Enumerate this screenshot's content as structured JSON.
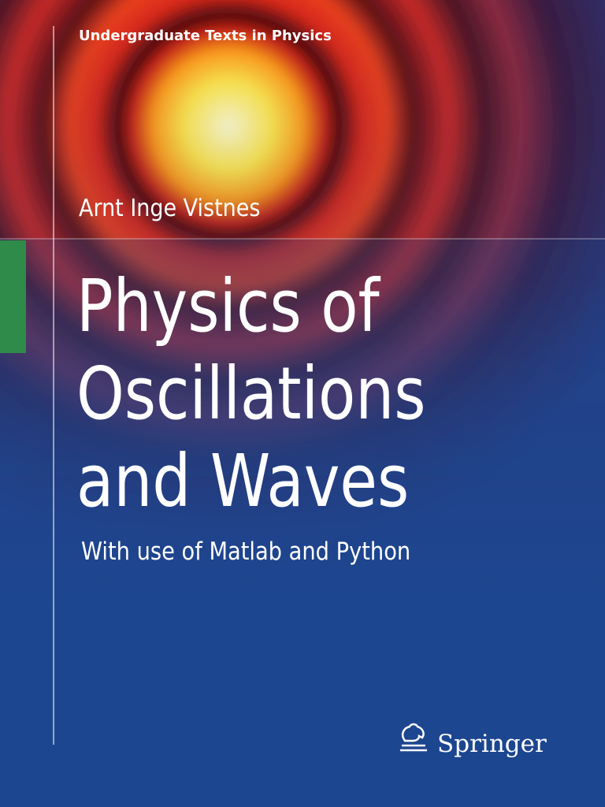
{
  "series": "Undergraduate Texts in Physics",
  "author": "Arnt Inge Vistnes",
  "title": {
    "lines": [
      "Physics of",
      "Oscillations",
      "and Waves"
    ]
  },
  "subtitle": "With use of Matlab and Python",
  "publisher": "Springer"
}
